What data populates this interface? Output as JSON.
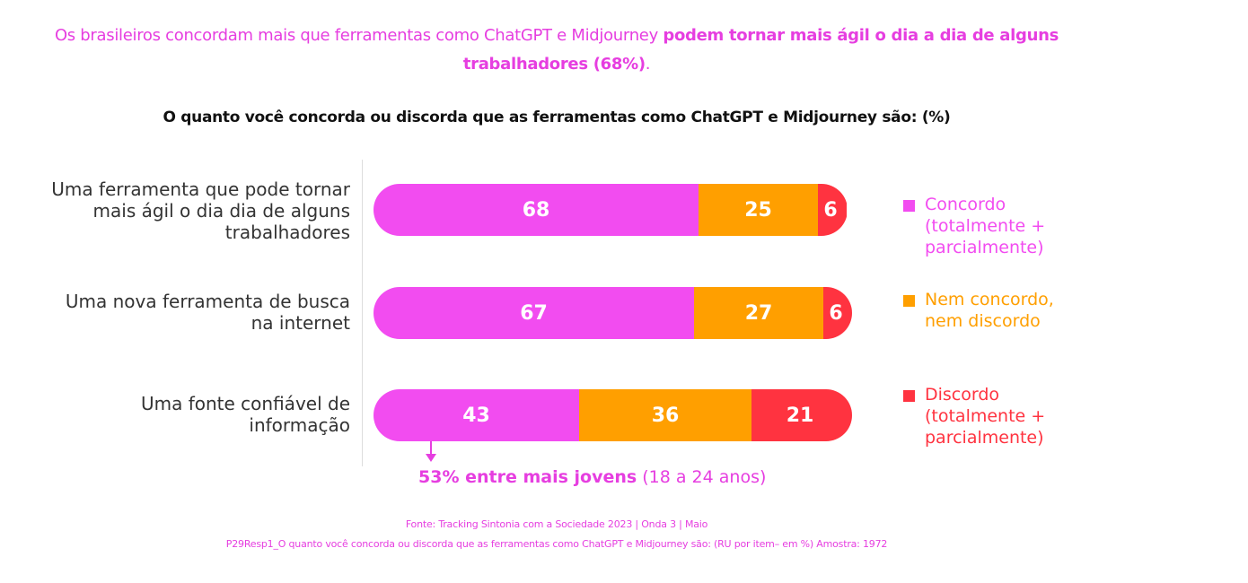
{
  "headline": {
    "part1": "Os brasileiros concordam mais que ferramentas como ChatGPT e Midjourney ",
    "part2": "podem tornar mais ágil o dia a dia de alguns trabalhadores (68%)",
    "part3": "."
  },
  "colors": {
    "concordo": "#f24cf0",
    "nem": "#ff9f00",
    "discordo": "#ff3340",
    "text_accent": "#e63ee0"
  },
  "chart_data": {
    "type": "bar",
    "orientation": "horizontal",
    "stacked": true,
    "title": "O quanto você concorda ou discorda que as ferramentas como ChatGPT e Midjourney são: (%)",
    "categories": [
      "Uma ferramenta que pode tornar\nmais ágil o dia dia de alguns\ntrabalhadores",
      "Uma nova ferramenta de busca\nna internet",
      "Uma fonte confiável de\ninformação"
    ],
    "series": [
      {
        "name": "Concordo\n(totalmente +\nparcialmente)",
        "values": [
          68,
          67,
          43
        ],
        "color": "#f24cf0"
      },
      {
        "name": "Nem concordo,\nnem discordo",
        "values": [
          25,
          27,
          36
        ],
        "color": "#ff9f00"
      },
      {
        "name": "Discordo\n(totalmente +\nparcialmente)",
        "values": [
          6,
          6,
          21
        ],
        "color": "#ff3340"
      }
    ],
    "legend_position": "right",
    "annotation": {
      "bold": "53% entre mais jovens",
      "rest": " (18 a 24 anos)"
    }
  },
  "footer": {
    "line1": "Fonte: Tracking Sintonia com a Sociedade 2023 | Onda 3 | Maio",
    "line2": "P29Resp1_O quanto você concorda ou discorda que as ferramentas como ChatGPT e Midjourney são: (RU por item– em %) Amostra: 1972"
  }
}
